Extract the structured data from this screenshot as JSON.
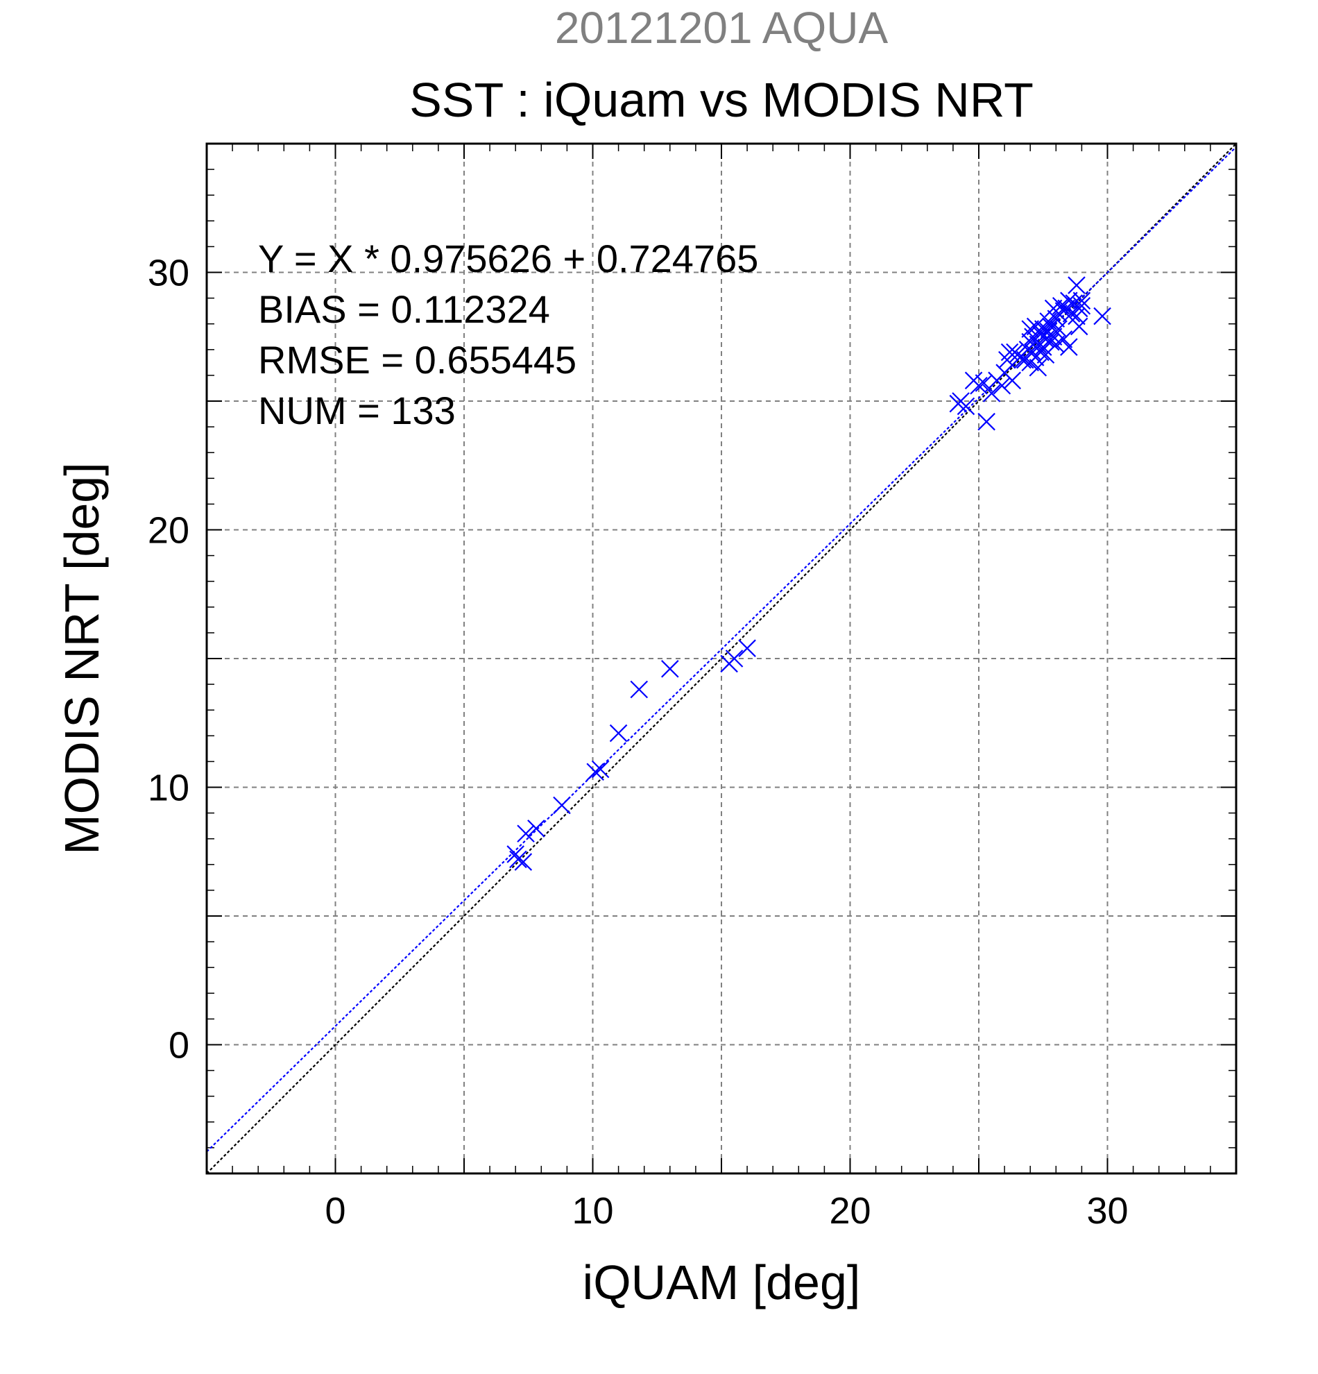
{
  "chart_data": {
    "type": "scatter",
    "supertitle": "20121201 AQUA",
    "title": "SST : iQuam vs MODIS NRT",
    "xlabel": "iQUAM [deg]",
    "ylabel": "MODIS NRT [deg]",
    "xlim": [
      -5,
      35
    ],
    "ylim": [
      -5,
      35
    ],
    "xticks": [
      0,
      10,
      20,
      30
    ],
    "yticks": [
      0,
      10,
      20,
      30
    ],
    "grid": true,
    "stats": [
      "Y = X * 0.975626 + 0.724765",
      "BIAS = 0.112324",
      "RMSE = 0.655445",
      "NUM = 133"
    ],
    "fit": {
      "slope": 0.975626,
      "intercept": 0.724765
    },
    "colors": {
      "points": "#0000ff",
      "fit_line": "#0000ff",
      "identity_line": "#000000",
      "supertitle": "#808080",
      "grid": "#808080"
    },
    "series": [
      {
        "marker": "x",
        "points": [
          [
            7.0,
            7.4
          ],
          [
            7.1,
            7.2
          ],
          [
            7.3,
            7.1
          ],
          [
            7.4,
            8.2
          ],
          [
            7.8,
            8.4
          ],
          [
            8.8,
            9.3
          ],
          [
            10.1,
            10.6
          ],
          [
            10.3,
            10.7
          ],
          [
            11.0,
            12.1
          ],
          [
            11.8,
            13.8
          ],
          [
            13.0,
            14.6
          ],
          [
            15.3,
            14.8
          ],
          [
            15.5,
            15.0
          ],
          [
            16.0,
            15.4
          ],
          [
            24.2,
            24.9
          ],
          [
            24.3,
            25.0
          ],
          [
            24.5,
            24.8
          ],
          [
            24.8,
            25.8
          ],
          [
            25.0,
            25.6
          ],
          [
            25.2,
            25.7
          ],
          [
            25.3,
            24.2
          ],
          [
            25.5,
            25.3
          ],
          [
            25.7,
            25.8
          ],
          [
            25.9,
            25.6
          ],
          [
            26.0,
            26.1
          ],
          [
            26.1,
            26.6
          ],
          [
            26.2,
            26.9
          ],
          [
            26.3,
            25.8
          ],
          [
            26.4,
            26.9
          ],
          [
            26.5,
            26.8
          ],
          [
            26.6,
            26.7
          ],
          [
            26.7,
            26.6
          ],
          [
            26.8,
            26.6
          ],
          [
            26.9,
            27.0
          ],
          [
            27.0,
            27.3
          ],
          [
            27.0,
            27.8
          ],
          [
            27.0,
            26.5
          ],
          [
            27.1,
            27.5
          ],
          [
            27.1,
            26.9
          ],
          [
            27.2,
            27.9
          ],
          [
            27.2,
            26.7
          ],
          [
            27.3,
            27.2
          ],
          [
            27.3,
            26.3
          ],
          [
            27.4,
            27.6
          ],
          [
            27.4,
            26.9
          ],
          [
            27.5,
            27.8
          ],
          [
            27.5,
            27.1
          ],
          [
            27.6,
            27.4
          ],
          [
            27.6,
            26.8
          ],
          [
            27.7,
            27.7
          ],
          [
            27.7,
            28.1
          ],
          [
            27.8,
            27.3
          ],
          [
            27.8,
            27.9
          ],
          [
            27.9,
            28.6
          ],
          [
            27.9,
            27.5
          ],
          [
            28.0,
            28.2
          ],
          [
            28.0,
            27.2
          ],
          [
            28.1,
            28.4
          ],
          [
            28.1,
            27.8
          ],
          [
            28.2,
            28.7
          ],
          [
            28.3,
            28.5
          ],
          [
            28.3,
            27.4
          ],
          [
            28.4,
            28.6
          ],
          [
            28.5,
            28.9
          ],
          [
            28.5,
            27.1
          ],
          [
            28.6,
            28.4
          ],
          [
            28.7,
            28.8
          ],
          [
            28.8,
            29.5
          ],
          [
            28.8,
            28.3
          ],
          [
            28.9,
            28.6
          ],
          [
            28.9,
            27.9
          ],
          [
            29.0,
            28.7
          ],
          [
            29.0,
            28.9
          ],
          [
            29.8,
            28.3
          ]
        ]
      }
    ]
  }
}
